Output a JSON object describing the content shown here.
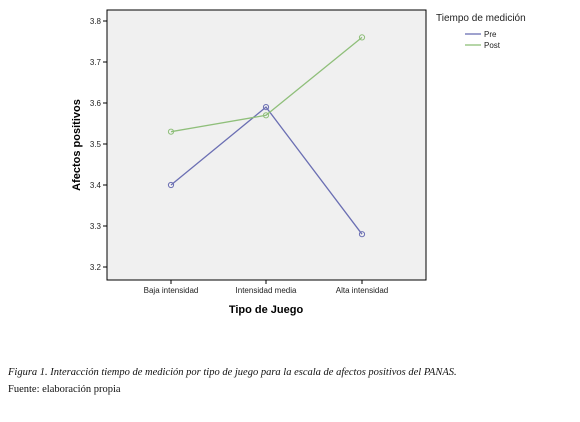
{
  "chart_data": {
    "type": "line",
    "categories": [
      "Baja intensidad",
      "Intensidad media",
      "Alta intensidad"
    ],
    "series": [
      {
        "name": "Pre",
        "values": [
          3.4,
          3.59,
          3.28
        ],
        "color": "#6b6fb3"
      },
      {
        "name": "Post",
        "values": [
          3.53,
          3.57,
          3.76
        ],
        "color": "#8fbf7a"
      }
    ],
    "xlabel": "Tipo de Juego",
    "ylabel": "Afectos positivos",
    "ylim": [
      3.2,
      3.8
    ],
    "yticks": [
      "3.2",
      "3.3",
      "3.4",
      "3.5",
      "3.6",
      "3.7",
      "3.8"
    ],
    "legend_title": "Tiempo de medición",
    "legend_position": "top-right",
    "grid": false
  },
  "caption": {
    "figure_text": "Figura 1. Interacción tiempo de medición por tipo de juego para la escala de afectos positivos del PANAS.",
    "source_text": "Fuente: elaboración propia"
  }
}
